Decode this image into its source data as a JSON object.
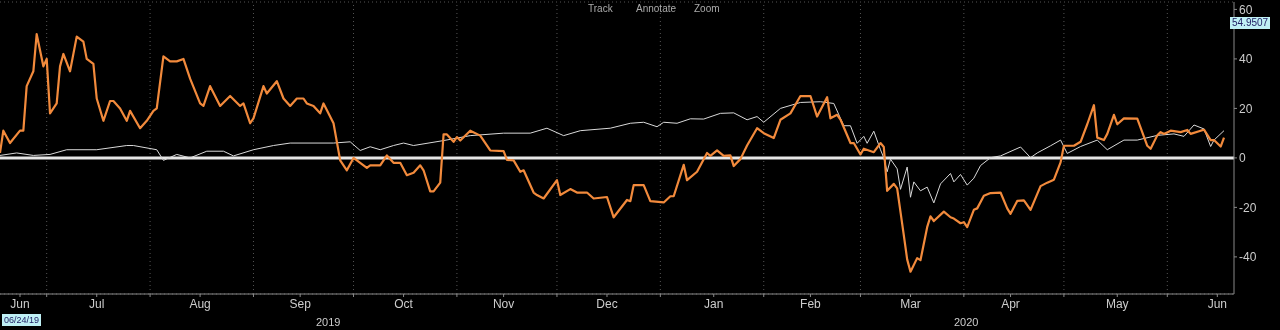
{
  "chart_data": {
    "type": "line",
    "xlim": [
      "2019-06-17",
      "2020-06-21"
    ],
    "xticks": [
      {
        "value": "2019-06-23",
        "label": "Jun"
      },
      {
        "value": "2019-07-01",
        "label": null
      },
      {
        "value": "2019-07-16",
        "label": "Jul"
      },
      {
        "value": "2019-08-01",
        "label": null
      },
      {
        "value": "2019-08-16",
        "label": "Aug"
      },
      {
        "value": "2019-09-01",
        "label": null
      },
      {
        "value": "2019-09-15",
        "label": "Sep"
      },
      {
        "value": "2019-10-01",
        "label": null
      },
      {
        "value": "2019-10-16",
        "label": "Oct"
      },
      {
        "value": "2019-11-01",
        "label": null
      },
      {
        "value": "2019-11-15",
        "label": "Nov"
      },
      {
        "value": "2019-12-01",
        "label": null
      },
      {
        "value": "2019-12-16",
        "label": "Dec"
      },
      {
        "value": "2020-01-01",
        "label": null
      },
      {
        "value": "2020-01-17",
        "label": "Jan"
      },
      {
        "value": "2020-02-01",
        "label": null
      },
      {
        "value": "2020-02-15",
        "label": "Feb"
      },
      {
        "value": "2020-03-01",
        "label": null
      },
      {
        "value": "2020-03-16",
        "label": "Mar"
      },
      {
        "value": "2020-04-01",
        "label": null
      },
      {
        "value": "2020-04-15",
        "label": "Apr"
      },
      {
        "value": "2020-05-01",
        "label": null
      },
      {
        "value": "2020-05-17",
        "label": "May"
      },
      {
        "value": "2020-06-01",
        "label": null
      },
      {
        "value": "2020-06-16",
        "label": "Jun"
      }
    ],
    "ylim": [
      -55,
      63
    ],
    "yticks": [
      -40,
      -20,
      0,
      20,
      40,
      60
    ],
    "grid": true,
    "line_style": "solid",
    "marker": "none",
    "ref_lines": [
      {
        "axis": "y",
        "value": 0,
        "color": "#e6e6e6"
      }
    ],
    "annotations": [
      "Track",
      "Annotate",
      "Zoom",
      "54.9507",
      "06/24/19",
      "2019",
      "2020"
    ],
    "series": [
      {
        "color": "#d9d9d9",
        "x": [
          "2019-06-17",
          "2019-06-22",
          "2019-06-27",
          "2019-07-02",
          "2019-07-07",
          "2019-07-16",
          "2019-07-25",
          "2019-07-27",
          "2019-08-03",
          "2019-08-05",
          "2019-08-09",
          "2019-08-13",
          "2019-08-18",
          "2019-08-23",
          "2019-08-26",
          "2019-09-01",
          "2019-09-07",
          "2019-09-12",
          "2019-09-25",
          "2019-09-30",
          "2019-10-03",
          "2019-10-06",
          "2019-10-09",
          "2019-10-13",
          "2019-10-16",
          "2019-10-19",
          "2019-10-28",
          "2019-11-05",
          "2019-11-15",
          "2019-11-23",
          "2019-11-28",
          "2019-12-03",
          "2019-12-08",
          "2019-12-17",
          "2019-12-23",
          "2019-12-27",
          "2019-12-31",
          "2020-01-02",
          "2020-01-06",
          "2020-01-10",
          "2020-01-14",
          "2020-01-19",
          "2020-01-23",
          "2020-01-27",
          "2020-01-30",
          "2020-02-01",
          "2020-02-06",
          "2020-02-12",
          "2020-02-18",
          "2020-02-22",
          "2020-02-25",
          "2020-02-27",
          "2020-02-29",
          "2020-03-02",
          "2020-03-03",
          "2020-03-05",
          "2020-03-07",
          "2020-03-08",
          "2020-03-09",
          "2020-03-10",
          "2020-03-12",
          "2020-03-13",
          "2020-03-15",
          "2020-03-16",
          "2020-03-17",
          "2020-03-19",
          "2020-03-21",
          "2020-03-23",
          "2020-03-25",
          "2020-03-28",
          "2020-03-29",
          "2020-03-31",
          "2020-04-02",
          "2020-04-04",
          "2020-04-06",
          "2020-04-09",
          "2020-04-12",
          "2020-04-18",
          "2020-04-21",
          "2020-04-23",
          "2020-04-27",
          "2020-04-30",
          "2020-05-02",
          "2020-05-06",
          "2020-05-11",
          "2020-05-14",
          "2020-05-19",
          "2020-05-23",
          "2020-05-29",
          "2020-06-03",
          "2020-06-06",
          "2020-06-09",
          "2020-06-12",
          "2020-06-14",
          "2020-06-15",
          "2020-06-18"
        ],
        "values": [
          1,
          2,
          1,
          1.4,
          3.3,
          3.3,
          5,
          5,
          3.3,
          -1,
          1.4,
          0,
          2.7,
          2.7,
          0.8,
          3.3,
          5,
          6,
          6,
          6.5,
          3,
          4.5,
          3.3,
          5,
          6,
          5,
          7,
          9,
          10,
          10,
          12,
          9,
          11,
          12,
          14,
          14.4,
          12.6,
          14.4,
          14,
          15.8,
          15.7,
          18,
          18.2,
          15.4,
          16.7,
          14.4,
          20,
          22.4,
          22.7,
          22,
          13,
          13,
          5.9,
          8.7,
          5.9,
          10.8,
          3.3,
          0,
          -5.6,
          -0.5,
          -4.4,
          -12.7,
          -3.7,
          -15.9,
          -9.7,
          -13.3,
          -11.8,
          -18.2,
          -10.5,
          -6.3,
          -9.7,
          -6.7,
          -11,
          -8.2,
          -3.1,
          0.1,
          0.8,
          4.4,
          0.1,
          2,
          4.9,
          7.2,
          1.8,
          4.6,
          7.2,
          3.3,
          7.2,
          7.2,
          9.1,
          9.7,
          8.7,
          13.3,
          11.7,
          4.6,
          7.2,
          11
        ]
      },
      {
        "color": "#f28a3c",
        "x": [
          "2019-06-17",
          "2019-06-18",
          "2019-06-20",
          "2019-06-23",
          "2019-06-24",
          "2019-06-25",
          "2019-06-27",
          "2019-06-28",
          "2019-06-30",
          "2019-07-01",
          "2019-07-02",
          "2019-07-04",
          "2019-07-05",
          "2019-07-06",
          "2019-07-08",
          "2019-07-10",
          "2019-07-12",
          "2019-07-13",
          "2019-07-15",
          "2019-07-16",
          "2019-07-18",
          "2019-07-20",
          "2019-07-21",
          "2019-07-23",
          "2019-07-25",
          "2019-07-26",
          "2019-07-29",
          "2019-07-31",
          "2019-08-02",
          "2019-08-03",
          "2019-08-05",
          "2019-08-07",
          "2019-08-09",
          "2019-08-11",
          "2019-08-13",
          "2019-08-16",
          "2019-08-17",
          "2019-08-19",
          "2019-08-22",
          "2019-08-25",
          "2019-08-28",
          "2019-08-29",
          "2019-08-31",
          "2019-09-01",
          "2019-09-04",
          "2019-09-05",
          "2019-09-08",
          "2019-09-10",
          "2019-09-12",
          "2019-09-14",
          "2019-09-16",
          "2019-09-17",
          "2019-09-19",
          "2019-09-21",
          "2019-09-22",
          "2019-09-25",
          "2019-09-27",
          "2019-09-29",
          "2019-10-01",
          "2019-10-05",
          "2019-10-06",
          "2019-10-09",
          "2019-10-11",
          "2019-10-13",
          "2019-10-15",
          "2019-10-17",
          "2019-10-19",
          "2019-10-21",
          "2019-10-22",
          "2019-10-24",
          "2019-10-25",
          "2019-10-27",
          "2019-10-28",
          "2019-10-29",
          "2019-10-31",
          "2019-11-01",
          "2019-11-02",
          "2019-11-05",
          "2019-11-08",
          "2019-11-11",
          "2019-11-15",
          "2019-11-16",
          "2019-11-18",
          "2019-11-20",
          "2019-11-21",
          "2019-11-24",
          "2019-11-25",
          "2019-11-27",
          "2019-12-01",
          "2019-12-02",
          "2019-12-05",
          "2019-12-07",
          "2019-12-10",
          "2019-12-12",
          "2019-12-16",
          "2019-12-18",
          "2019-12-22",
          "2019-12-23",
          "2019-12-24",
          "2019-12-27",
          "2019-12-29",
          "2020-01-02",
          "2020-01-04",
          "2020-01-05",
          "2020-01-08",
          "2020-01-09",
          "2020-01-12",
          "2020-01-15",
          "2020-01-16",
          "2020-01-18",
          "2020-01-20",
          "2020-01-22",
          "2020-01-23",
          "2020-01-25",
          "2020-01-27",
          "2020-01-30",
          "2020-02-01",
          "2020-02-04",
          "2020-02-06",
          "2020-02-09",
          "2020-02-12",
          "2020-02-15",
          "2020-02-17",
          "2020-02-20",
          "2020-02-21",
          "2020-02-23",
          "2020-02-24",
          "2020-02-27",
          "2020-02-28",
          "2020-03-01",
          "2020-03-02",
          "2020-03-05",
          "2020-03-07",
          "2020-03-08",
          "2020-03-09",
          "2020-03-11",
          "2020-03-12",
          "2020-03-14",
          "2020-03-15",
          "2020-03-16",
          "2020-03-18",
          "2020-03-19",
          "2020-03-21",
          "2020-03-22",
          "2020-03-23",
          "2020-03-26",
          "2020-03-28",
          "2020-03-29",
          "2020-03-31",
          "2020-04-01",
          "2020-04-02",
          "2020-04-04",
          "2020-04-05",
          "2020-04-07",
          "2020-04-09",
          "2020-04-12",
          "2020-04-14",
          "2020-04-15",
          "2020-04-17",
          "2020-04-19",
          "2020-04-21",
          "2020-04-24",
          "2020-04-26",
          "2020-04-28",
          "2020-04-30",
          "2020-05-01",
          "2020-05-04",
          "2020-05-06",
          "2020-05-08",
          "2020-05-10",
          "2020-05-11",
          "2020-05-13",
          "2020-05-14",
          "2020-05-16",
          "2020-05-17",
          "2020-05-19",
          "2020-05-23",
          "2020-05-26",
          "2020-05-27",
          "2020-05-29",
          "2020-05-30",
          "2020-05-31",
          "2020-06-02",
          "2020-06-05",
          "2020-06-07",
          "2020-06-08",
          "2020-06-11",
          "2020-06-12",
          "2020-06-14",
          "2020-06-15",
          "2020-06-17",
          "2020-06-18"
        ],
        "values": [
          2,
          11,
          6,
          11,
          11,
          29,
          35,
          50,
          37,
          40,
          18,
          22,
          37,
          42,
          35,
          49,
          47,
          40,
          38,
          24,
          15,
          23,
          23,
          20,
          15,
          19,
          12,
          15,
          19,
          20,
          41,
          39,
          39,
          40,
          32,
          22,
          21,
          29,
          21,
          25,
          21,
          22,
          14,
          16,
          29,
          26,
          31,
          24,
          21,
          24,
          24,
          22,
          21,
          18,
          22,
          14,
          -1,
          -5,
          0,
          -4,
          -3,
          -3,
          1,
          -2,
          -2,
          -7,
          -6,
          -3,
          -5,
          -13.5,
          -13.5,
          -10,
          9.5,
          9.5,
          6.5,
          8.4,
          7,
          11,
          9,
          3,
          2.7,
          -0.8,
          -1,
          -5.6,
          -5,
          -14,
          -15,
          -16.4,
          -9,
          -15,
          -12.6,
          -14,
          -14,
          -16.4,
          -15.8,
          -24,
          -17,
          -17.5,
          -11,
          -11,
          -17.5,
          -18,
          -15.5,
          -15.5,
          -2.8,
          -9,
          -5.6,
          2,
          0.8,
          3,
          0.8,
          1,
          -3.3,
          -0.5,
          5,
          12,
          10,
          8,
          15.4,
          18,
          25,
          25,
          16.7,
          24.5,
          16,
          17.4,
          15.5,
          6,
          6,
          1.4,
          3.7,
          2.3,
          6,
          4.4,
          -13.3,
          -10.5,
          -12.3,
          -31.3,
          -41,
          -46,
          -40.5,
          -41.3,
          -28,
          -23.6,
          -25.5,
          -21.7,
          -24,
          -24.5,
          -26.4,
          -26,
          -28,
          -21,
          -20.4,
          -15.3,
          -14.2,
          -14,
          -20.4,
          -22.6,
          -17.4,
          -17.2,
          -21,
          -11.4,
          -10,
          -8.8,
          -1.8,
          4.9,
          4.9,
          6.5,
          13.6,
          21.3,
          8.2,
          7.2,
          9.7,
          17.4,
          13.6,
          16,
          15.9,
          4.9,
          3.7,
          9.1,
          10.4,
          9.7,
          11,
          10.4,
          11.3,
          9.7,
          11,
          11.4,
          7.2,
          7.2,
          4.6,
          8.2
        ]
      }
    ]
  }
}
